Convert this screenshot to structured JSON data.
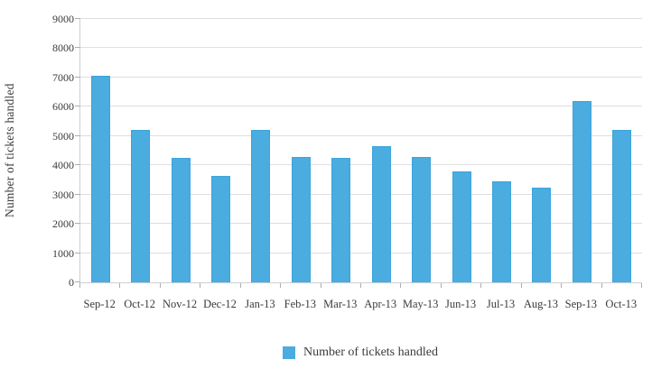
{
  "chart_data": {
    "type": "bar",
    "title": "",
    "xlabel": "",
    "ylabel": "Number of tickets handled",
    "categories": [
      "Sep-12",
      "Oct-12",
      "Nov-12",
      "Dec-12",
      "Jan-13",
      "Feb-13",
      "Mar-13",
      "Apr-13",
      "May-13",
      "Jun-13",
      "Jul-13",
      "Aug-13",
      "Sep-13",
      "Oct-13"
    ],
    "values": [
      7050,
      5200,
      4250,
      3650,
      5200,
      4300,
      4250,
      4650,
      4300,
      3800,
      3450,
      3250,
      6200,
      5200
    ],
    "series": [
      {
        "name": "Number of tickets handled",
        "values": [
          7050,
          5200,
          4250,
          3650,
          5200,
          4300,
          4250,
          4650,
          4300,
          3800,
          3450,
          3250,
          6200,
          5200
        ]
      }
    ],
    "ylim": [
      0,
      9000
    ],
    "yticks": [
      0,
      1000,
      2000,
      3000,
      4000,
      5000,
      6000,
      7000,
      8000,
      9000
    ],
    "grid": "horizontal",
    "legend_label": "Number of tickets handled",
    "legend_position": "bottom-center",
    "bar_color": "#4aacdf"
  },
  "colors": {
    "bar": "#4aacdf",
    "bar_border": "#3da5db",
    "gridline": "#dedee3",
    "axis_line": "#cfcfd6",
    "tick": "#adadb5",
    "text": "#3b3b3b",
    "background": "#ffffff"
  }
}
